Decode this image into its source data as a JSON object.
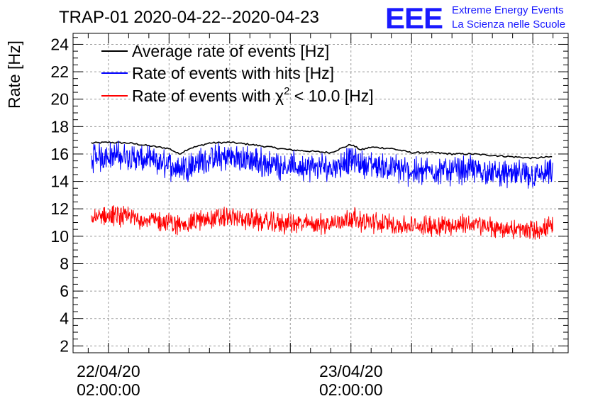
{
  "chart_data": {
    "type": "line",
    "title": "TRAP-01 2020-04-22--2020-04-23",
    "ylabel": "Rate [Hz]",
    "xlabel": "",
    "x_unit": "hours since 2020-04-21 23:00:00",
    "xlim": [
      -0.5,
      48.5
    ],
    "ylim": [
      1.5,
      24.8
    ],
    "yticks": [
      2,
      4,
      6,
      8,
      10,
      12,
      14,
      16,
      18,
      20,
      22,
      24
    ],
    "xticks": [
      {
        "x": 3,
        "line1": "22/04/20",
        "line2": "02:00:00"
      },
      {
        "x": 27,
        "line1": "23/04/20",
        "line2": "02:00:00"
      }
    ],
    "grid": true,
    "legend_position": "top-left",
    "series": [
      {
        "name": "Average rate of events [Hz]",
        "color": "#000000",
        "x": [
          1.3,
          3,
          5,
          7,
          9,
          10,
          11,
          13,
          15,
          17,
          19,
          21,
          23,
          25,
          27,
          28,
          29,
          31,
          33,
          35,
          37,
          39,
          41,
          43,
          45,
          47
        ],
        "y": [
          16.8,
          16.85,
          16.8,
          16.6,
          16.4,
          16.0,
          16.4,
          16.8,
          16.85,
          16.7,
          16.5,
          16.3,
          16.2,
          16.1,
          16.7,
          16.3,
          16.5,
          16.4,
          16.1,
          16.1,
          16.0,
          16.0,
          15.9,
          15.8,
          15.7,
          15.8
        ]
      },
      {
        "name": "Rate of events with hits [Hz]",
        "color": "#0000ff",
        "x": [
          1.3,
          3,
          5,
          7,
          9,
          10,
          11,
          13,
          15,
          17,
          19,
          21,
          23,
          25,
          27,
          28,
          29,
          31,
          33,
          35,
          37,
          39,
          41,
          43,
          45,
          47
        ],
        "y": [
          15.7,
          15.9,
          15.8,
          15.5,
          15.2,
          15.0,
          15.2,
          15.6,
          15.8,
          15.5,
          15.3,
          15.1,
          15.0,
          15.0,
          15.6,
          15.3,
          15.2,
          15.0,
          14.7,
          14.8,
          14.8,
          14.9,
          14.6,
          14.5,
          14.4,
          14.6
        ]
      },
      {
        "name": "Rate of events with χ² < 10.0 [Hz]",
        "color": "#ff0000",
        "x": [
          1.3,
          3,
          5,
          7,
          9,
          10,
          11,
          13,
          15,
          17,
          19,
          21,
          23,
          25,
          27,
          28,
          29,
          31,
          33,
          35,
          37,
          39,
          41,
          43,
          45,
          47
        ],
        "y": [
          11.3,
          11.5,
          11.4,
          11.2,
          11.0,
          10.8,
          11.0,
          11.3,
          11.4,
          11.2,
          11.0,
          10.9,
          10.9,
          10.9,
          11.4,
          11.1,
          11.0,
          10.9,
          10.7,
          10.8,
          10.8,
          10.9,
          10.6,
          10.5,
          10.4,
          10.7
        ]
      }
    ]
  },
  "legend": {
    "entries": [
      {
        "label": "Average rate of events [Hz]",
        "color": "#000000"
      },
      {
        "label": "Rate of events with hits [Hz]",
        "color": "#0000ff"
      },
      {
        "label_pre": "Rate of events with ",
        "label_chi": "χ",
        "label_sup": "2",
        "label_post": " < 10.0 [Hz]",
        "color": "#ff0000"
      }
    ]
  },
  "logo": {
    "mark": "EEE",
    "line1": "Extreme Energy Events",
    "line2": "La Scienza nelle Scuole",
    "color": "#1a1aff"
  }
}
